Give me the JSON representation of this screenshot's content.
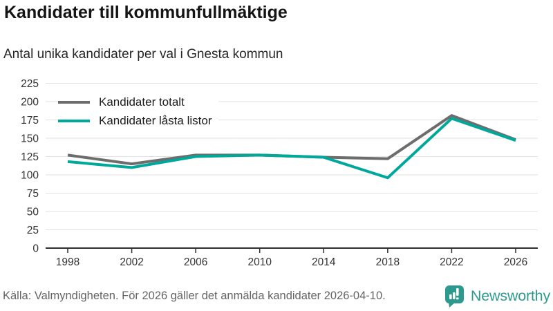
{
  "header": {
    "title": "Kandidater till kommunfullmäktige",
    "subtitle": "Antal unika kandidater per val i Gnesta kommun"
  },
  "chart_data": {
    "type": "line",
    "title": "Kandidater till kommunfullmäktige",
    "subtitle": "Antal unika kandidater per val i Gnesta kommun",
    "x": [
      1998,
      2002,
      2006,
      2010,
      2014,
      2018,
      2022,
      2026
    ],
    "series": [
      {
        "name": "Kandidater totalt",
        "color": "#6d6d6d",
        "values": [
          127,
          115,
          127,
          127,
          124,
          122,
          181,
          148
        ]
      },
      {
        "name": "Kandidater låsta listor",
        "color": "#00a89c",
        "values": [
          118,
          110,
          125,
          127,
          124,
          96,
          177,
          147
        ]
      }
    ],
    "xlabel": "",
    "ylabel": "",
    "ylim": [
      0,
      225
    ],
    "yticks": [
      0,
      25,
      50,
      75,
      100,
      125,
      150,
      175,
      200,
      225
    ],
    "grid": "horizontal",
    "gridline_color": "#e2e2e2",
    "axis_color": "#2e2e2e",
    "tick_label_color": "#333333",
    "legend_position": "top-left-inside"
  },
  "footer": {
    "source": "Källa: Valmyndigheten. För 2026 gäller det anmälda kandidater 2026-04-10.",
    "brand": "Newsworthy",
    "brand_color": "#2e9a8f"
  }
}
